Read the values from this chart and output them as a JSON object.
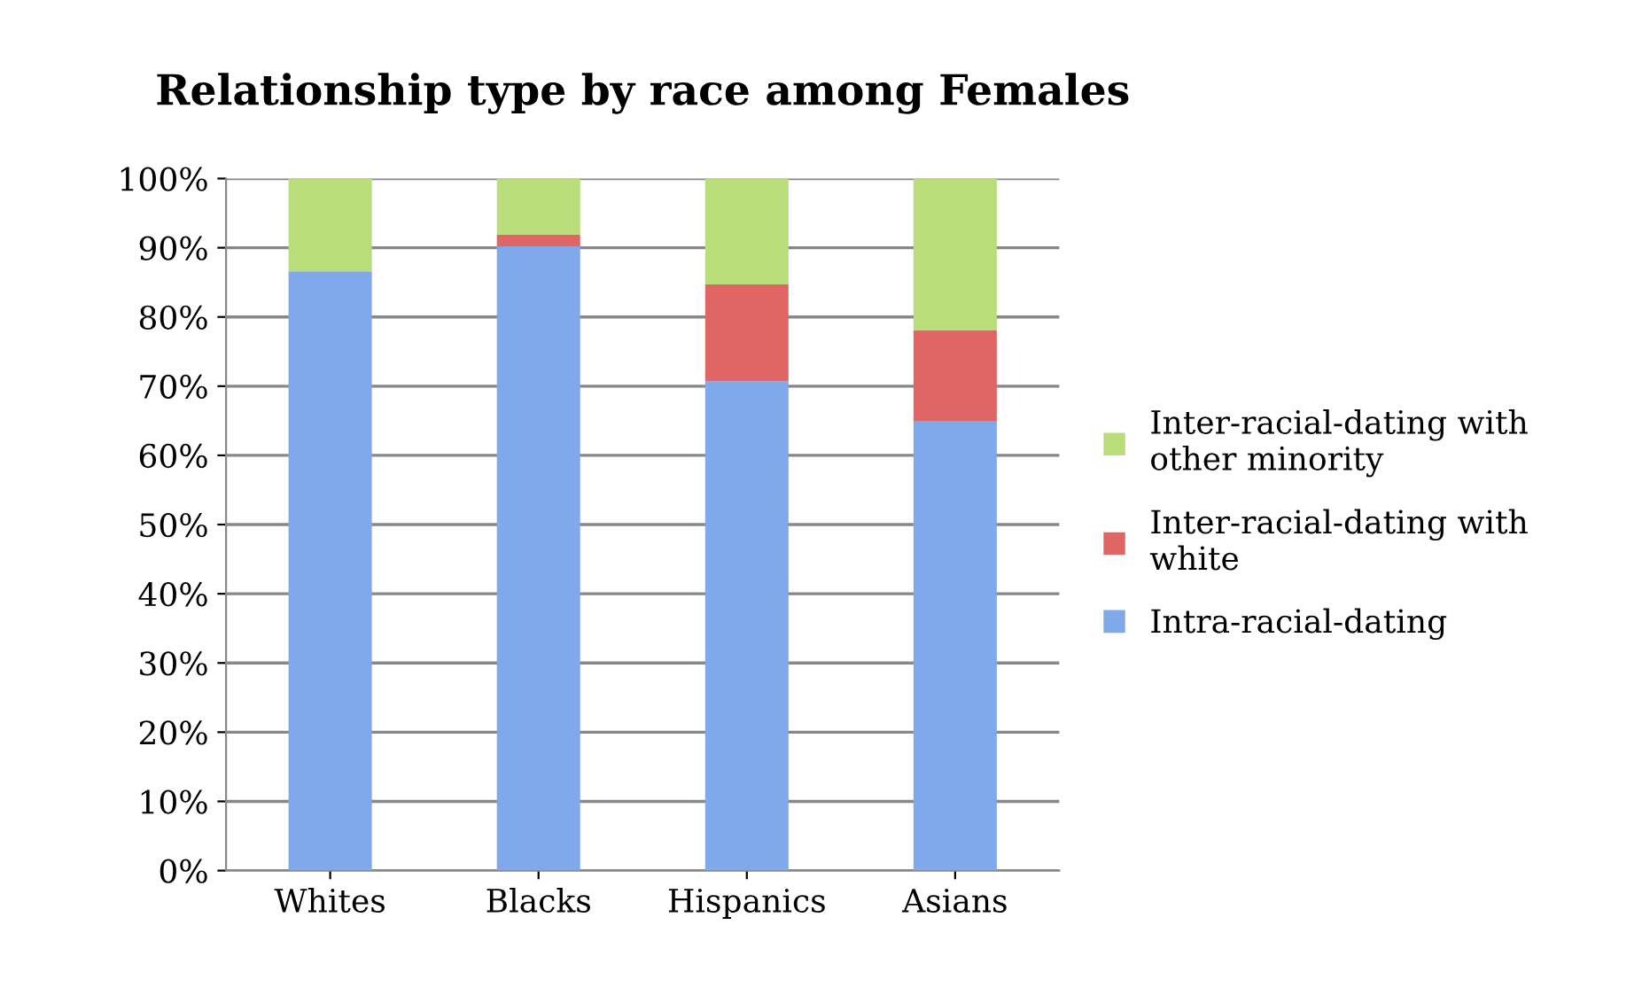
{
  "chart_data": {
    "type": "bar",
    "title": "Relationship type by race among Females",
    "categories": [
      "Whites",
      "Blacks",
      "Hispanics",
      "Asians"
    ],
    "stacked": true,
    "series": [
      {
        "name": "Intra-racial-dating",
        "color": "#7fa9ea",
        "values": [
          86.6,
          90.2,
          70.7,
          64.9
        ]
      },
      {
        "name": "Inter-racial-dating with white",
        "color": "#e06666",
        "values": [
          0,
          1.7,
          14.0,
          13.2
        ]
      },
      {
        "name": "Inter-racial-dating with other minority",
        "color": "#b9dd7a",
        "values": [
          13.4,
          8.1,
          15.3,
          21.9
        ]
      }
    ],
    "ylim": [
      0,
      100
    ],
    "yticks": [
      {
        "value": 0,
        "label": "0%"
      },
      {
        "value": 10,
        "label": "10%"
      },
      {
        "value": 20,
        "label": "20%"
      },
      {
        "value": 30,
        "label": "30%"
      },
      {
        "value": 40,
        "label": "40%"
      },
      {
        "value": 50,
        "label": "50%"
      },
      {
        "value": 60,
        "label": "60%"
      },
      {
        "value": 70,
        "label": "70%"
      },
      {
        "value": 80,
        "label": "80%"
      },
      {
        "value": 90,
        "label": "90%"
      },
      {
        "value": 100,
        "label": "100%"
      }
    ],
    "grid": "y",
    "legend": "right"
  }
}
